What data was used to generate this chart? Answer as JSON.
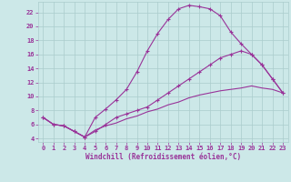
{
  "xlabel": "Windchill (Refroidissement éolien,°C)",
  "background_color": "#cce8e8",
  "grid_color": "#aacccc",
  "line_color": "#993399",
  "line1_x": [
    0,
    1,
    2,
    3,
    4,
    5,
    6,
    7,
    8,
    9,
    10,
    11,
    12,
    13,
    14,
    15,
    16,
    17,
    18,
    19,
    20,
    21,
    22,
    23
  ],
  "line1_y": [
    7.0,
    6.0,
    5.8,
    5.0,
    4.2,
    7.0,
    8.2,
    9.5,
    11.0,
    13.5,
    16.5,
    19.0,
    21.0,
    22.5,
    23.0,
    22.8,
    22.5,
    21.5,
    19.2,
    17.5,
    16.0,
    14.5,
    12.5,
    10.5
  ],
  "line2_x": [
    0,
    1,
    2,
    3,
    4,
    5,
    6,
    7,
    8,
    9,
    10,
    11,
    12,
    13,
    14,
    15,
    16,
    17,
    18,
    19,
    20,
    21,
    22,
    23
  ],
  "line2_y": [
    7.0,
    6.0,
    5.8,
    5.0,
    4.2,
    5.0,
    6.0,
    7.0,
    7.5,
    8.0,
    8.5,
    9.5,
    10.5,
    11.5,
    12.5,
    13.5,
    14.5,
    15.5,
    16.0,
    16.5,
    16.0,
    14.5,
    12.5,
    10.5
  ],
  "line3_x": [
    0,
    1,
    2,
    3,
    4,
    5,
    6,
    7,
    8,
    9,
    10,
    11,
    12,
    13,
    14,
    15,
    16,
    17,
    18,
    19,
    20,
    21,
    22,
    23
  ],
  "line3_y": [
    7.0,
    6.0,
    5.8,
    5.0,
    4.2,
    5.2,
    5.8,
    6.2,
    6.8,
    7.2,
    7.8,
    8.2,
    8.8,
    9.2,
    9.8,
    10.2,
    10.5,
    10.8,
    11.0,
    11.2,
    11.5,
    11.2,
    11.0,
    10.5
  ],
  "xlim": [
    -0.5,
    23.5
  ],
  "ylim": [
    3.5,
    23.5
  ],
  "xticks": [
    0,
    1,
    2,
    3,
    4,
    5,
    6,
    7,
    8,
    9,
    10,
    11,
    12,
    13,
    14,
    15,
    16,
    17,
    18,
    19,
    20,
    21,
    22,
    23
  ],
  "yticks": [
    4,
    6,
    8,
    10,
    12,
    14,
    16,
    18,
    20,
    22
  ],
  "tick_fontsize": 5.0,
  "xlabel_fontsize": 5.5
}
